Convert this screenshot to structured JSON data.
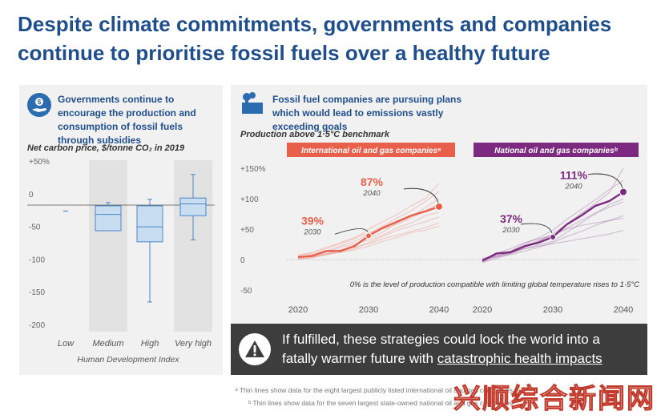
{
  "title": "Despite climate commitments, governments and companies continue to prioritise fossil fuels over a healthy future",
  "left_panel": {
    "heading": "Governments continue to encourage the production and consumption of fossil fuels through subsidies",
    "icon": "money-hand-icon"
  },
  "right_panel": {
    "heading": "Fossil fuel companies are pursuing plans which would lead to emissions vastly exceeding goals",
    "icon": "factory-smokestack-icon",
    "subtitle": "Production above 1·5°C benchmark",
    "note": "0% is the level of production compatible with limiting global temperature rises to 1·5°C"
  },
  "warning": {
    "icon": "warning-triangle-icon",
    "line1": "If fulfilled, these strategies could lock the world into a",
    "line2_prefix": "fatally warmer future with ",
    "line2_link": "catastrophic health impacts"
  },
  "footnotes": {
    "a": "ᵃ Thin lines show data for the eight largest publicly listed international oil and gas companies",
    "b": "ᵇ Thin lines show data for the seven largest state-owned national oil and gas companies"
  },
  "watermark": "兴顺综合新闻网",
  "colors": {
    "title": "#1f4e8c",
    "boxplot": "#4a86c5",
    "international": "#e8604c",
    "national": "#7b2a7f",
    "warning_bg": "#3d3d3d"
  },
  "chart_data": [
    {
      "type": "boxplot",
      "title": "Net carbon price, $/tonne CO₂ in 2019",
      "xlabel": "Human Development Index",
      "categories": [
        "Low",
        "Medium",
        "High",
        "Very high"
      ],
      "yticks": [
        "+50%",
        "0",
        "-50",
        "-100",
        "-150",
        "-200"
      ],
      "ylim": [
        -200,
        50
      ],
      "boxes": [
        {
          "category": "Low",
          "median": -18,
          "q1": -18,
          "q3": -18,
          "min": -18,
          "max": -18
        },
        {
          "category": "Medium",
          "median": -23,
          "q1": -48,
          "q3": -10,
          "min": -48,
          "max": -5
        },
        {
          "category": "High",
          "median": -42,
          "q1": -65,
          "q3": -10,
          "min": -157,
          "max": 0
        },
        {
          "category": "Very high",
          "median": -7,
          "q1": -25,
          "q3": 2,
          "min": -62,
          "max": 38
        }
      ],
      "shaded": [
        "Medium",
        "Very high"
      ]
    },
    {
      "type": "line",
      "title": "International oil and gas companiesᵃ",
      "x": [
        2020,
        2022,
        2024,
        2026,
        2028,
        2030,
        2032,
        2034,
        2036,
        2038,
        2040
      ],
      "xticks": [
        "2020",
        "2030",
        "2040"
      ],
      "yticks": [
        "+150%",
        "+100",
        "+50",
        "0",
        "-50"
      ],
      "ylim": [
        -50,
        150
      ],
      "series": [
        {
          "values": [
            4,
            6,
            14,
            14,
            22,
            39,
            52,
            62,
            72,
            79,
            87
          ]
        }
      ],
      "annotations": [
        {
          "label": "39%",
          "year": "2030",
          "value": 39
        },
        {
          "label": "87%",
          "year": "2040",
          "value": 87
        }
      ]
    },
    {
      "type": "line",
      "title": "National oil and gas companiesᵇ",
      "x": [
        2020,
        2022,
        2024,
        2026,
        2028,
        2030,
        2032,
        2034,
        2036,
        2038,
        2040
      ],
      "xticks": [
        "2020",
        "2030",
        "2040"
      ],
      "ylim": [
        -50,
        150
      ],
      "series": [
        {
          "values": [
            -2,
            10,
            12,
            22,
            28,
            37,
            58,
            72,
            88,
            96,
            111
          ]
        }
      ],
      "annotations": [
        {
          "label": "37%",
          "year": "2030",
          "value": 37
        },
        {
          "label": "111%",
          "year": "2040",
          "value": 111
        }
      ]
    }
  ]
}
